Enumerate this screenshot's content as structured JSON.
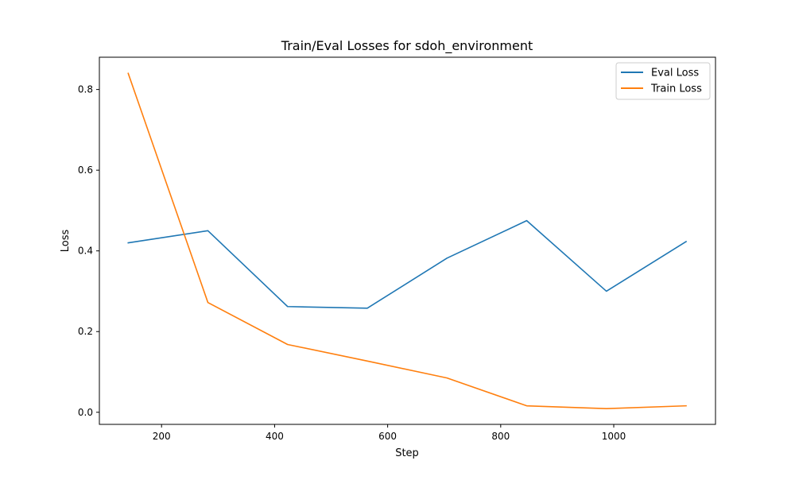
{
  "chart_data": {
    "type": "line",
    "title": "Train/Eval Losses for sdoh_environment",
    "xlabel": "Step",
    "ylabel": "Loss",
    "xlim": [
      90,
      1180
    ],
    "ylim": [
      -0.03,
      0.88
    ],
    "x_ticks": [
      200,
      400,
      600,
      800,
      1000
    ],
    "y_ticks": [
      0.0,
      0.2,
      0.4,
      0.6,
      0.8
    ],
    "x_tick_labels": [
      "200",
      "400",
      "600",
      "800",
      "1000"
    ],
    "y_tick_labels": [
      "0.0",
      "0.2",
      "0.4",
      "0.6",
      "0.8"
    ],
    "grid": false,
    "legend": "top-right",
    "series": [
      {
        "name": "Eval Loss",
        "color": "#1f77b4",
        "x": [
          141,
          282,
          423,
          564,
          705,
          846,
          987,
          1128
        ],
        "y": [
          0.42,
          0.45,
          0.262,
          0.258,
          0.382,
          0.475,
          0.3,
          0.423
        ]
      },
      {
        "name": "Train Loss",
        "color": "#ff7f0e",
        "x": [
          141,
          282,
          423,
          564,
          705,
          846,
          987,
          1128
        ],
        "y": [
          0.84,
          0.272,
          0.168,
          0.127,
          0.085,
          0.016,
          0.009,
          0.016
        ]
      }
    ]
  }
}
